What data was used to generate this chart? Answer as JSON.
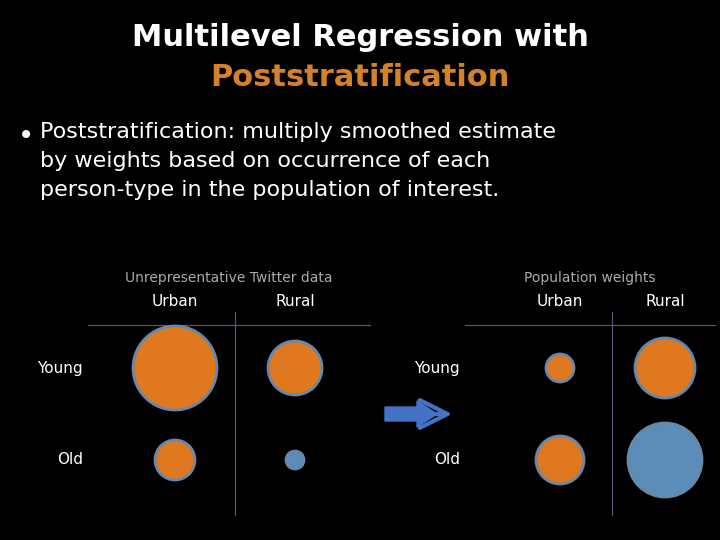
{
  "background_color": "#000000",
  "title_line1": "Multilevel Regression with",
  "title_line2": "Poststratification",
  "title_color1": "#ffffff",
  "title_color2": "#d4822a",
  "title_fontsize": 22,
  "bullet_text": "Poststratification: multiply smoothed estimate\nby weights based on occurrence of each\nperson-type in the population of interest.",
  "bullet_fontsize": 16,
  "bullet_color": "#ffffff",
  "label_twitter": "Unrepresentative Twitter data",
  "label_population": "Population weights",
  "label_color": "#aaaaaa",
  "label_fontsize": 10,
  "col_label_color": "#ffffff",
  "col_label_fontsize": 11,
  "row_label_color": "#ffffff",
  "row_label_fontsize": 11,
  "orange_color": "#E07820",
  "blue_color": "#5B8DB8",
  "edge_color": "#6688aa",
  "grid_line_color": "#555577",
  "arrow_color": "#4472C4",
  "tw_urban_young_r": 42,
  "tw_rural_young_r": 27,
  "tw_urban_old_r": 20,
  "tw_rural_old_r": 9,
  "tw_urban_young_col": "orange",
  "tw_rural_young_col": "orange",
  "tw_urban_old_col": "orange",
  "tw_rural_old_col": "blue",
  "pop_urban_young_r": 14,
  "pop_rural_young_r": 30,
  "pop_urban_old_r": 24,
  "pop_rural_old_r": 37,
  "pop_urban_young_col": "orange",
  "pop_rural_young_col": "orange",
  "pop_urban_old_col": "orange",
  "pop_rural_old_col": "blue"
}
